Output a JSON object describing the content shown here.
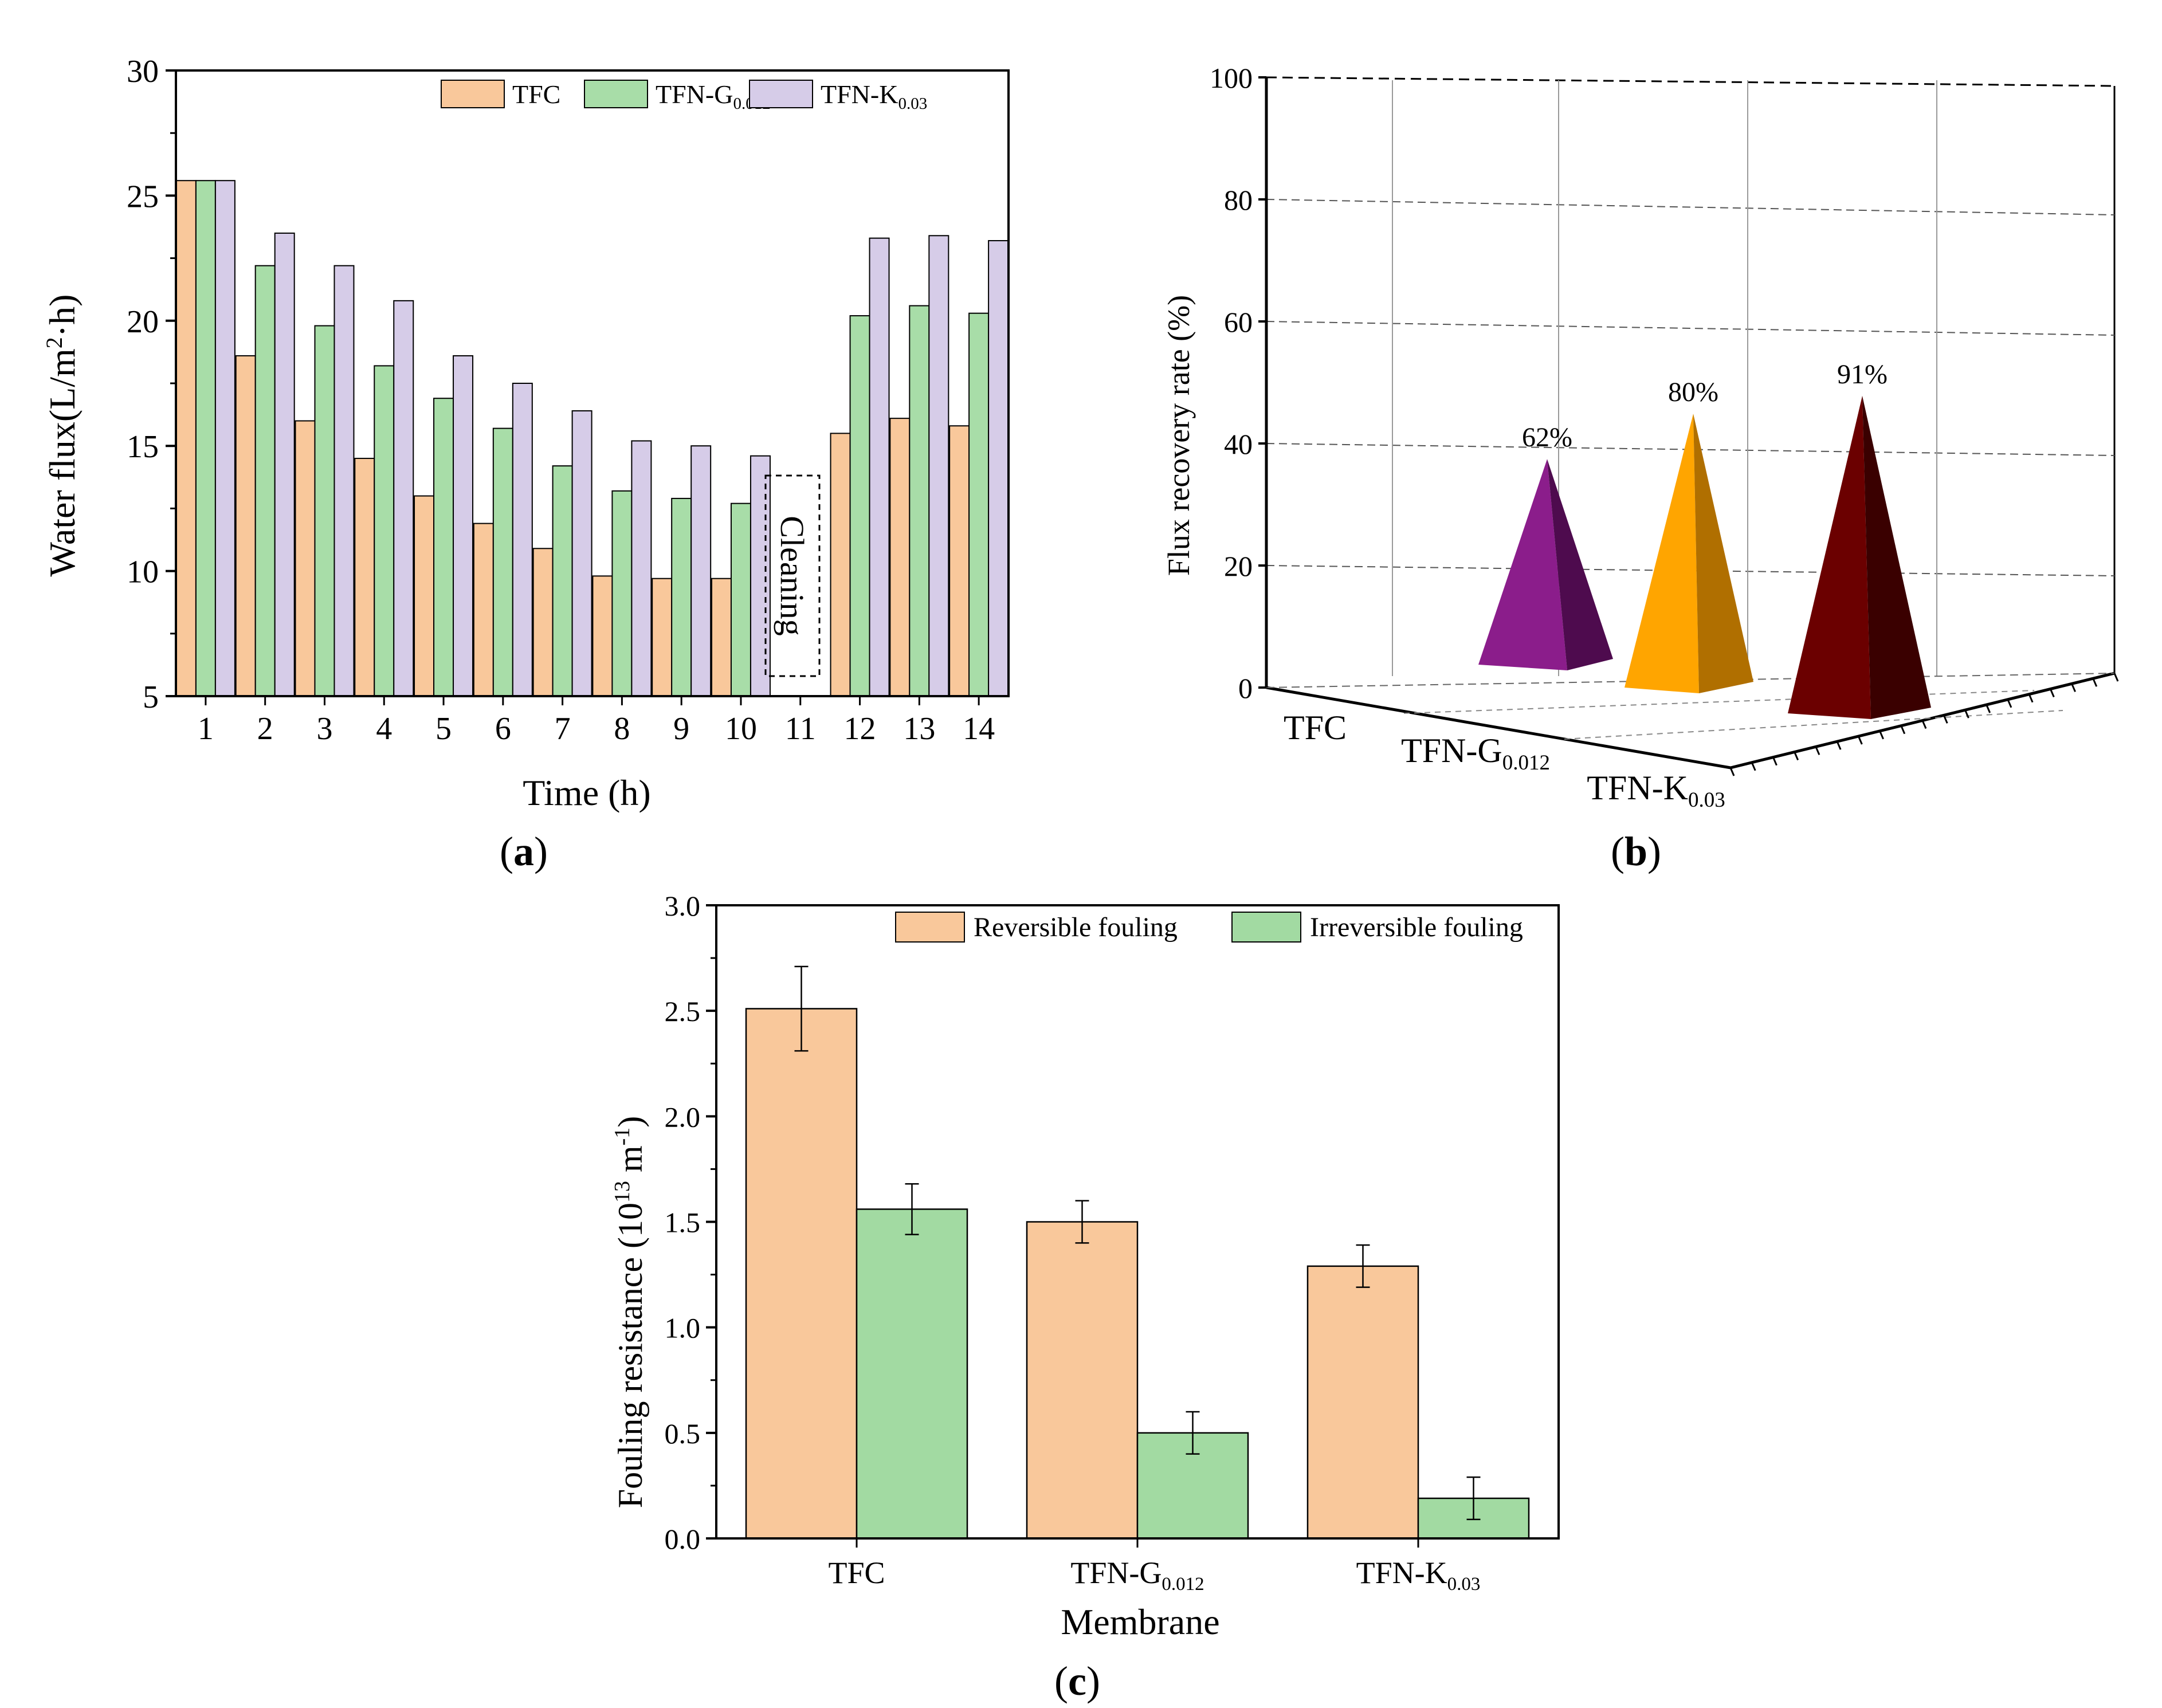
{
  "panels": {
    "a": {
      "label": "a"
    },
    "b": {
      "label": "b"
    },
    "c": {
      "label": "c"
    }
  },
  "colors": {
    "tfc": "#F9C89B",
    "tfn_g": "#A8DDA8",
    "tfn_k": "#D6CCE8",
    "rev": "#F9C89B",
    "irr": "#A2DAA2",
    "pyr_tfc": "#8B1D8B",
    "pyr_tfc_dark": "#4E0B4E",
    "pyr_g": "#FFA500",
    "pyr_g_dark": "#B06F00",
    "pyr_k": "#6B0000",
    "pyr_k_dark": "#3A0000"
  },
  "chart_data": [
    {
      "id": "a",
      "type": "bar",
      "xlabel": "Time (h)",
      "ylabel": "Water flux(L/m²·h)",
      "ylim": [
        5,
        30
      ],
      "yticks": [
        5,
        10,
        15,
        20,
        25,
        30
      ],
      "categories": [
        "1",
        "2",
        "3",
        "4",
        "5",
        "6",
        "7",
        "8",
        "9",
        "10",
        "11",
        "12",
        "13",
        "14"
      ],
      "series": [
        {
          "name": "TFC",
          "name_base": "TFC",
          "name_sub": "",
          "color_key": "tfc",
          "values": [
            25.6,
            18.6,
            16.0,
            14.5,
            13.0,
            11.9,
            10.9,
            9.8,
            9.7,
            9.7,
            null,
            15.5,
            16.1,
            15.8
          ]
        },
        {
          "name": "TFN-G0.012",
          "name_base": "TFN-G",
          "name_sub": "0.012",
          "color_key": "tfn_g",
          "values": [
            25.6,
            22.2,
            19.8,
            18.2,
            16.9,
            15.7,
            14.2,
            13.2,
            12.9,
            12.7,
            null,
            20.2,
            20.6,
            20.3
          ]
        },
        {
          "name": "TFN-K0.03",
          "name_base": "TFN-K",
          "name_sub": "0.03",
          "color_key": "tfn_k",
          "values": [
            25.6,
            23.5,
            22.2,
            20.8,
            18.6,
            17.5,
            16.4,
            15.2,
            15.0,
            14.6,
            null,
            23.3,
            23.4,
            23.2
          ]
        }
      ],
      "annotation": "Cleaning",
      "grid": false,
      "legend_position": "top-right"
    },
    {
      "id": "b",
      "type": "bar",
      "style": "3d-pyramid",
      "ylabel": "Flux recovery rate (%)",
      "ylim": [
        0,
        100
      ],
      "yticks": [
        0,
        20,
        40,
        60,
        80,
        100
      ],
      "categories": [
        {
          "base": "TFC",
          "sub": ""
        },
        {
          "base": "TFN-G",
          "sub": "0.012"
        },
        {
          "base": "TFN-K",
          "sub": "0.03"
        }
      ],
      "values": [
        62,
        80,
        91
      ],
      "value_labels": [
        "62%",
        "80%",
        "91%"
      ],
      "grid": true
    },
    {
      "id": "c",
      "type": "bar",
      "xlabel": "Membrane",
      "ylabel_base": "Fouling resistance (10",
      "ylabel_sup1": "13",
      "ylabel_mid": " m",
      "ylabel_sup2": "-1",
      "ylabel_end": ")",
      "ylim": [
        0,
        3.0
      ],
      "yticks": [
        "0.0",
        "0.5",
        "1.0",
        "1.5",
        "2.0",
        "2.5",
        "3.0"
      ],
      "categories": [
        {
          "base": "TFC",
          "sub": ""
        },
        {
          "base": "TFN-G",
          "sub": "0.012"
        },
        {
          "base": "TFN-K",
          "sub": "0.03"
        }
      ],
      "series": [
        {
          "name": "Reversible fouling",
          "color_key": "rev",
          "values": [
            2.51,
            1.5,
            1.29
          ],
          "errors": [
            0.2,
            0.1,
            0.1
          ]
        },
        {
          "name": "Irreversible fouling",
          "color_key": "irr",
          "values": [
            1.56,
            0.5,
            0.19
          ],
          "errors": [
            0.12,
            0.1,
            0.1
          ]
        }
      ],
      "grid": false,
      "legend_position": "top-right"
    }
  ]
}
